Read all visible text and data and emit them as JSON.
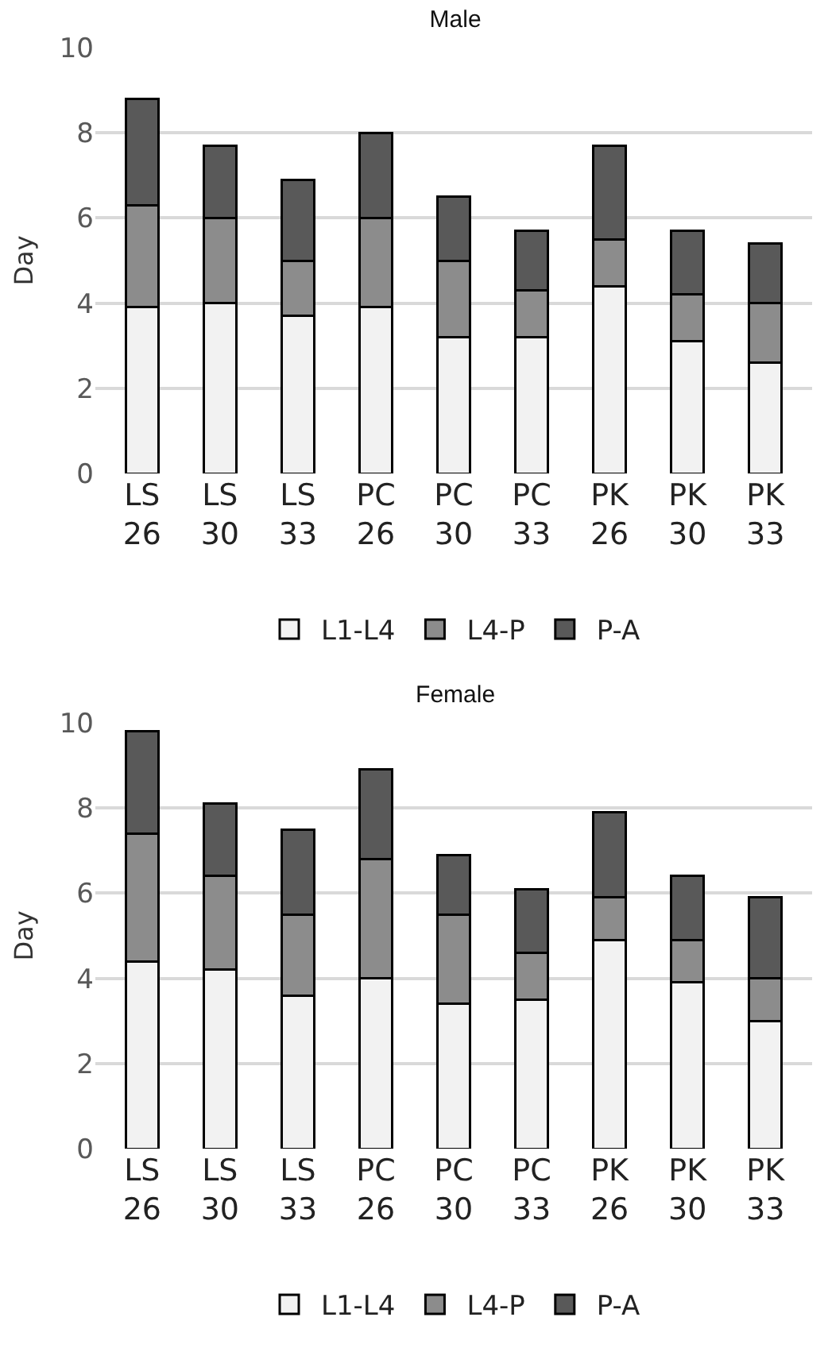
{
  "chart_data": [
    {
      "type": "bar",
      "title": "Male",
      "ylabel": "Day",
      "categories": [
        "LS 26",
        "LS 30",
        "LS 33",
        "PC 26",
        "PC 30",
        "PC 33",
        "PK 26",
        "PK 30",
        "PK 33"
      ],
      "stacked": true,
      "ylim": [
        0,
        10
      ],
      "yticks": [
        0,
        2,
        4,
        6,
        8,
        10
      ],
      "grid": "y",
      "legend": "bottom",
      "series": [
        {
          "name": "L1-L4",
          "color": "#f2f2f2",
          "values": [
            3.9,
            4.0,
            3.7,
            3.9,
            3.2,
            3.2,
            4.4,
            3.1,
            2.6
          ]
        },
        {
          "name": "L4-P",
          "color": "#8c8c8c",
          "values": [
            2.4,
            2.0,
            1.3,
            2.1,
            1.8,
            1.1,
            1.1,
            1.1,
            1.4
          ]
        },
        {
          "name": "P-A",
          "color": "#595959",
          "values": [
            2.5,
            1.7,
            1.9,
            2.0,
            1.5,
            1.4,
            2.2,
            1.5,
            1.4
          ]
        }
      ]
    },
    {
      "type": "bar",
      "title": "Female",
      "ylabel": "Day",
      "categories": [
        "LS 26",
        "LS 30",
        "LS 33",
        "PC 26",
        "PC 30",
        "PC 33",
        "PK 26",
        "PK 30",
        "PK 33"
      ],
      "stacked": true,
      "ylim": [
        0,
        10
      ],
      "yticks": [
        0,
        2,
        4,
        6,
        8,
        10
      ],
      "grid": "y",
      "legend": "bottom",
      "series": [
        {
          "name": "L1-L4",
          "color": "#f2f2f2",
          "values": [
            4.4,
            4.2,
            3.6,
            4.0,
            3.4,
            3.5,
            4.9,
            3.9,
            3.0
          ]
        },
        {
          "name": "L4-P",
          "color": "#8c8c8c",
          "values": [
            3.0,
            2.2,
            1.9,
            2.8,
            2.1,
            1.1,
            1.0,
            1.0,
            1.0
          ]
        },
        {
          "name": "P-A",
          "color": "#595959",
          "values": [
            2.4,
            1.7,
            2.0,
            2.1,
            1.4,
            1.5,
            2.0,
            1.5,
            1.9
          ]
        }
      ]
    }
  ]
}
